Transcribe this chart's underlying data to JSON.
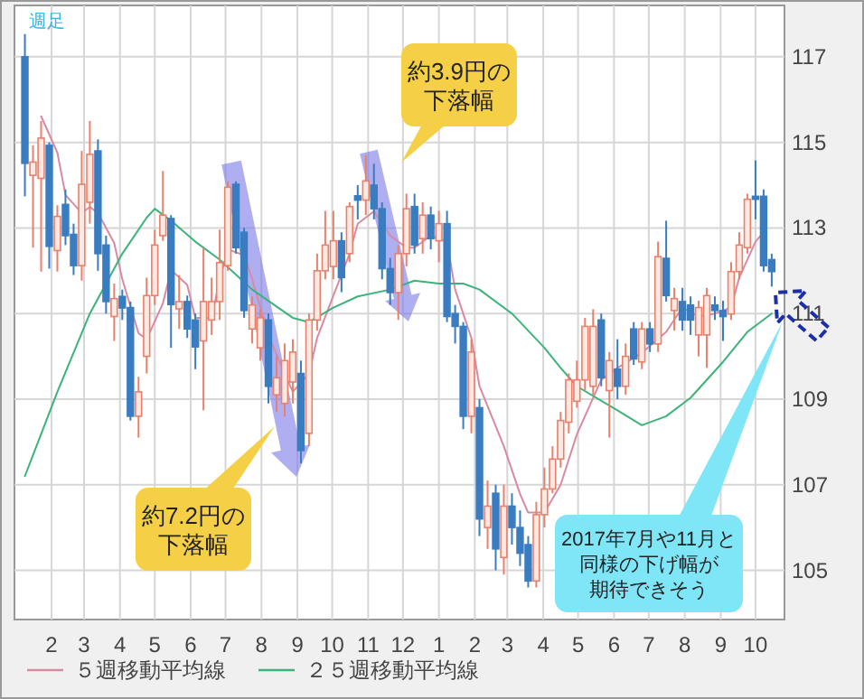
{
  "chart_data": {
    "type": "candlestick",
    "annotations": [
      "週足",
      "約7.2円の下落幅",
      "約3.9円の下落幅",
      "2017年7月や11月と同様の下げ幅が期待できそう"
    ],
    "x": [
      "2017-01-09",
      "2017-01-16",
      "2017-01-23",
      "2017-01-30",
      "2017-02-06",
      "2017-02-13",
      "2017-02-20",
      "2017-02-27",
      "2017-03-06",
      "2017-03-13",
      "2017-03-20",
      "2017-03-27",
      "2017-04-03",
      "2017-04-10",
      "2017-04-17",
      "2017-04-24",
      "2017-05-01",
      "2017-05-08",
      "2017-05-15",
      "2017-05-22",
      "2017-05-29",
      "2017-06-05",
      "2017-06-12",
      "2017-06-19",
      "2017-06-26",
      "2017-07-03",
      "2017-07-10",
      "2017-07-17",
      "2017-07-24",
      "2017-07-31",
      "2017-08-07",
      "2017-08-14",
      "2017-08-21",
      "2017-08-28",
      "2017-09-04",
      "2017-09-11",
      "2017-09-18",
      "2017-09-25",
      "2017-10-02",
      "2017-10-09",
      "2017-10-16",
      "2017-10-23",
      "2017-10-30",
      "2017-11-06",
      "2017-11-13",
      "2017-11-20",
      "2017-11-27",
      "2017-12-04",
      "2017-12-11",
      "2017-12-18",
      "2017-12-25",
      "2018-01-01",
      "2018-01-08",
      "2018-01-15",
      "2018-01-22",
      "2018-01-29",
      "2018-02-05",
      "2018-02-12",
      "2018-02-19",
      "2018-02-26",
      "2018-03-05",
      "2018-03-12",
      "2018-03-19",
      "2018-03-26",
      "2018-04-02",
      "2018-04-09",
      "2018-04-16",
      "2018-04-23",
      "2018-04-30",
      "2018-05-07",
      "2018-05-14",
      "2018-05-21",
      "2018-05-28",
      "2018-06-04",
      "2018-06-11",
      "2018-06-18",
      "2018-06-25",
      "2018-07-02",
      "2018-07-09",
      "2018-07-16",
      "2018-07-23",
      "2018-07-30",
      "2018-08-06",
      "2018-08-13",
      "2018-08-20",
      "2018-08-27",
      "2018-09-03",
      "2018-09-10",
      "2018-09-17",
      "2018-09-24",
      "2018-10-01",
      "2018-10-08",
      "2018-10-15"
    ],
    "ohlc": [
      [
        117.0,
        117.53,
        113.74,
        114.51
      ],
      [
        114.23,
        114.93,
        112.54,
        114.54
      ],
      [
        114.16,
        115.5,
        111.98,
        115.1
      ],
      [
        114.93,
        115.0,
        112.05,
        112.57
      ],
      [
        112.47,
        113.53,
        111.98,
        113.27
      ],
      [
        113.55,
        113.9,
        112.6,
        112.82
      ],
      [
        112.85,
        113.1,
        111.9,
        112.12
      ],
      [
        112.12,
        114.8,
        111.77,
        114.02
      ],
      [
        113.6,
        115.5,
        113.1,
        114.72
      ],
      [
        114.8,
        115.07,
        112.0,
        112.4
      ],
      [
        112.6,
        112.82,
        111.0,
        111.28
      ],
      [
        110.93,
        111.7,
        110.36,
        111.35
      ],
      [
        111.4,
        111.56,
        110.85,
        111.13
      ],
      [
        111.14,
        111.28,
        108.5,
        108.6
      ],
      [
        108.6,
        109.52,
        108.1,
        109.17
      ],
      [
        110.0,
        111.84,
        109.6,
        111.42
      ],
      [
        111.42,
        112.96,
        111.2,
        112.6
      ],
      [
        112.82,
        114.33,
        112.7,
        113.3
      ],
      [
        113.22,
        113.3,
        110.2,
        111.21
      ],
      [
        111.11,
        111.9,
        110.64,
        111.28
      ],
      [
        111.28,
        111.42,
        110.43,
        110.64
      ],
      [
        110.85,
        111.0,
        109.7,
        110.22
      ],
      [
        110.36,
        112.54,
        108.74,
        111.28
      ],
      [
        110.85,
        111.84,
        110.5,
        111.28
      ],
      [
        111.28,
        112.96,
        110.85,
        112.19
      ],
      [
        112.12,
        114.09,
        112.0,
        113.95
      ],
      [
        114.02,
        114.09,
        112.4,
        112.54
      ],
      [
        112.9,
        113.0,
        110.9,
        111.07
      ],
      [
        110.64,
        111.4,
        110.3,
        111.2
      ],
      [
        110.2,
        111.1,
        109.9,
        110.9
      ],
      [
        110.85,
        111.0,
        108.9,
        109.3
      ],
      [
        109.1,
        110.0,
        108.7,
        109.5
      ],
      [
        108.9,
        110.3,
        108.6,
        109.9
      ],
      [
        109.4,
        110.4,
        108.9,
        110.1
      ],
      [
        109.6,
        109.9,
        107.5,
        107.8
      ],
      [
        108.2,
        111.0,
        107.9,
        110.85
      ],
      [
        110.85,
        112.4,
        110.6,
        112.0
      ],
      [
        112.0,
        113.4,
        111.8,
        112.6
      ],
      [
        112.1,
        113.4,
        111.8,
        112.7
      ],
      [
        112.7,
        112.9,
        111.5,
        111.84
      ],
      [
        112.4,
        113.6,
        112.2,
        113.5
      ],
      [
        113.75,
        114.0,
        113.2,
        113.65
      ],
      [
        113.65,
        114.7,
        113.3,
        114.1
      ],
      [
        114.0,
        114.5,
        113.2,
        113.45
      ],
      [
        113.45,
        113.6,
        111.8,
        112.05
      ],
      [
        112.05,
        112.3,
        111.2,
        111.49
      ],
      [
        111.49,
        112.6,
        110.85,
        112.4
      ],
      [
        112.4,
        113.8,
        112.1,
        113.45
      ],
      [
        113.5,
        113.8,
        112.4,
        112.6
      ],
      [
        112.75,
        113.6,
        112.4,
        113.3
      ],
      [
        113.3,
        113.5,
        112.5,
        112.75
      ],
      [
        112.7,
        113.4,
        112.2,
        113.1
      ],
      [
        113.1,
        113.4,
        110.8,
        110.93
      ],
      [
        111.0,
        111.2,
        110.3,
        110.7
      ],
      [
        110.7,
        110.8,
        108.3,
        108.6
      ],
      [
        108.6,
        110.4,
        108.2,
        110.1
      ],
      [
        108.8,
        109.0,
        105.8,
        106.2
      ],
      [
        106.0,
        107.1,
        105.5,
        106.5
      ],
      [
        106.8,
        107.0,
        105.0,
        105.5
      ],
      [
        105.3,
        107.0,
        104.9,
        106.5
      ],
      [
        106.5,
        106.8,
        105.6,
        106.0
      ],
      [
        106.0,
        106.4,
        105.1,
        105.4
      ],
      [
        105.6,
        105.8,
        104.6,
        104.75
      ],
      [
        104.75,
        106.6,
        104.6,
        106.3
      ],
      [
        106.3,
        107.4,
        106.0,
        106.9
      ],
      [
        106.9,
        107.9,
        106.8,
        107.6
      ],
      [
        107.6,
        108.7,
        107.4,
        108.5
      ],
      [
        108.46,
        109.6,
        108.2,
        109.45
      ],
      [
        108.95,
        109.9,
        108.8,
        109.45
      ],
      [
        109.45,
        110.9,
        109.2,
        110.7
      ],
      [
        109.3,
        111.1,
        109.1,
        110.7
      ],
      [
        110.85,
        111.0,
        109.3,
        109.5
      ],
      [
        109.2,
        110.1,
        108.1,
        109.9
      ],
      [
        109.7,
        110.4,
        109.0,
        109.3
      ],
      [
        109.3,
        110.3,
        109.1,
        110.0
      ],
      [
        110.64,
        110.8,
        109.8,
        109.94
      ],
      [
        109.87,
        110.8,
        109.7,
        110.64
      ],
      [
        110.64,
        110.8,
        110.1,
        110.29
      ],
      [
        110.29,
        112.68,
        110.1,
        112.33
      ],
      [
        112.29,
        113.17,
        111.28,
        111.42
      ],
      [
        111.07,
        111.6,
        110.6,
        111.35
      ],
      [
        111.28,
        111.6,
        110.6,
        110.85
      ],
      [
        111.2,
        111.4,
        110.5,
        110.85
      ],
      [
        110.5,
        111.3,
        110.0,
        111.14
      ],
      [
        110.5,
        111.6,
        109.73,
        111.42
      ],
      [
        111.2,
        111.4,
        110.85,
        111.07
      ],
      [
        111.07,
        111.3,
        110.36,
        110.93
      ],
      [
        110.99,
        112.2,
        110.85,
        111.98
      ],
      [
        111.98,
        112.9,
        111.8,
        112.6
      ],
      [
        112.54,
        113.8,
        112.4,
        113.67
      ],
      [
        113.74,
        114.58,
        113.2,
        113.67
      ],
      [
        113.74,
        113.9,
        111.98,
        112.12
      ],
      [
        112.26,
        112.4,
        111.63,
        111.98
      ]
    ],
    "colors": [
      "#3a7cc0",
      "#e8806c",
      "#e8806c",
      "#3a7cc0",
      "#e8806c",
      "#3a7cc0",
      "#3a7cc0",
      "#e8806c",
      "#e8806c",
      "#3a7cc0",
      "#3a7cc0",
      "#e8806c",
      "#3a7cc0",
      "#3a7cc0",
      "#e8806c",
      "#e8806c",
      "#e8806c",
      "#e8806c",
      "#3a7cc0",
      "#e8806c",
      "#3a7cc0",
      "#3a7cc0",
      "#e8806c",
      "#e8806c",
      "#e8806c",
      "#e8806c",
      "#3a7cc0",
      "#3a7cc0",
      "#e8806c",
      "#e8806c",
      "#3a7cc0",
      "#e8806c",
      "#e8806c",
      "#e8806c",
      "#3a7cc0",
      "#e8806c",
      "#e8806c",
      "#e8806c",
      "#e8806c",
      "#3a7cc0",
      "#e8806c",
      "#3a7cc0",
      "#e8806c",
      "#3a7cc0",
      "#3a7cc0",
      "#3a7cc0",
      "#e8806c",
      "#e8806c",
      "#3a7cc0",
      "#e8806c",
      "#3a7cc0",
      "#e8806c",
      "#3a7cc0",
      "#3a7cc0",
      "#3a7cc0",
      "#e8806c",
      "#3a7cc0",
      "#e8806c",
      "#3a7cc0",
      "#e8806c",
      "#3a7cc0",
      "#3a7cc0",
      "#3a7cc0",
      "#e8806c",
      "#e8806c",
      "#e8806c",
      "#e8806c",
      "#e8806c",
      "#e8806c",
      "#e8806c",
      "#e8806c",
      "#3a7cc0",
      "#e8806c",
      "#3a7cc0",
      "#e8806c",
      "#3a7cc0",
      "#e8806c",
      "#3a7cc0",
      "#e8806c",
      "#3a7cc0",
      "#e8806c",
      "#3a7cc0",
      "#3a7cc0",
      "#e8806c",
      "#e8806c",
      "#3a7cc0",
      "#3a7cc0",
      "#e8806c",
      "#e8806c",
      "#e8806c",
      "#3a7cc0",
      "#3a7cc0",
      "#3a7cc0"
    ],
    "series": [
      {
        "name": "５週移動平均線",
        "type": "line",
        "color": "#d98aa0",
        "x": [
          "2017-01-23",
          "2017-02-06",
          "2017-02-13",
          "2017-02-27",
          "2017-03-06",
          "2017-03-13",
          "2017-03-27",
          "2017-04-03",
          "2017-04-17",
          "2017-04-24",
          "2017-05-08",
          "2017-05-15",
          "2017-05-29",
          "2017-06-05",
          "2017-06-19",
          "2017-06-26",
          "2017-07-03",
          "2017-07-17",
          "2017-07-24",
          "2017-08-07",
          "2017-08-21",
          "2017-08-28",
          "2017-09-11",
          "2017-09-18",
          "2017-10-02",
          "2017-10-16",
          "2017-10-23",
          "2017-11-06",
          "2017-11-20",
          "2017-12-04",
          "2017-12-11",
          "2017-12-25",
          "2018-01-08",
          "2018-01-15",
          "2018-01-29",
          "2018-02-05",
          "2018-02-26",
          "2018-03-12",
          "2018-03-19",
          "2018-04-02",
          "2018-04-16",
          "2018-04-30",
          "2018-05-14",
          "2018-05-21",
          "2018-06-04",
          "2018-06-25",
          "2018-07-16",
          "2018-07-30",
          "2018-08-13",
          "2018-08-27",
          "2018-09-10",
          "2018-09-17",
          "2018-10-01",
          "2018-10-08"
        ],
        "values": [
          115.61,
          114.76,
          113.77,
          113.35,
          113.49,
          113.35,
          112.65,
          111.8,
          110.54,
          110.4,
          111.24,
          112.02,
          111.67,
          110.9,
          110.9,
          111.8,
          112.5,
          112.36,
          111.8,
          110.5,
          109.6,
          109.17,
          109.6,
          110.43,
          111.42,
          112.4,
          113.1,
          113.39,
          112.82,
          112.54,
          112.54,
          112.82,
          112.68,
          111.56,
          110.43,
          109.3,
          107.9,
          106.78,
          106.35,
          106.35,
          107.0,
          108.18,
          109.03,
          109.45,
          109.73,
          110.08,
          110.57,
          111.14,
          110.93,
          111.0,
          111.14,
          111.84,
          112.68,
          112.9
        ]
      },
      {
        "name": "２５週移動平均線",
        "type": "line",
        "color": "#3cb37a",
        "x": [
          "2017-01-09",
          "2017-02-06",
          "2017-03-06",
          "2017-04-03",
          "2017-04-24",
          "2017-05-01",
          "2017-05-15",
          "2017-06-05",
          "2017-06-26",
          "2017-07-24",
          "2017-08-28",
          "2017-09-11",
          "2017-10-02",
          "2017-10-23",
          "2017-11-20",
          "2017-12-11",
          "2018-01-01",
          "2018-01-22",
          "2018-02-05",
          "2018-03-05",
          "2018-04-02",
          "2018-04-16",
          "2018-04-30",
          "2018-06-04",
          "2018-06-25",
          "2018-07-16",
          "2018-08-06",
          "2018-09-03",
          "2018-09-24",
          "2018-10-15"
        ],
        "values": [
          107.2,
          109.17,
          111.0,
          112.4,
          113.24,
          113.45,
          113.17,
          112.68,
          112.26,
          111.56,
          110.9,
          110.8,
          111.14,
          111.4,
          111.56,
          111.77,
          111.7,
          111.7,
          111.56,
          111.0,
          110.2,
          109.73,
          109.3,
          108.74,
          108.39,
          108.6,
          109.03,
          109.87,
          110.57,
          111.0
        ]
      }
    ],
    "xlim": [
      "2016-12-31",
      "2018-10-26"
    ],
    "xticks": [
      {
        "value": "2017-02-01",
        "label": "2"
      },
      {
        "value": "2017-03-01",
        "label": "3"
      },
      {
        "value": "2017-04-01",
        "label": "4"
      },
      {
        "value": "2017-05-01",
        "label": "5"
      },
      {
        "value": "2017-06-01",
        "label": "6"
      },
      {
        "value": "2017-07-01",
        "label": "7"
      },
      {
        "value": "2017-08-01",
        "label": "8"
      },
      {
        "value": "2017-09-01",
        "label": "9"
      },
      {
        "value": "2017-10-01",
        "label": "10"
      },
      {
        "value": "2017-11-01",
        "label": "11"
      },
      {
        "value": "2017-12-01",
        "label": "12"
      },
      {
        "value": "2018-01-01",
        "label": "1"
      },
      {
        "value": "2018-02-01",
        "label": "2"
      },
      {
        "value": "2018-03-01",
        "label": "3"
      },
      {
        "value": "2018-04-01",
        "label": "4"
      },
      {
        "value": "2018-05-01",
        "label": "5"
      },
      {
        "value": "2018-06-01",
        "label": "6"
      },
      {
        "value": "2018-07-01",
        "label": "7"
      },
      {
        "value": "2018-08-01",
        "label": "8"
      },
      {
        "value": "2018-09-01",
        "label": "9"
      },
      {
        "value": "2018-10-01",
        "label": "10"
      }
    ],
    "ylim": [
      103.85,
      118.2
    ],
    "yticks": [
      105,
      107,
      109,
      111,
      113,
      115,
      117
    ],
    "grid": true,
    "legend": "bottom"
  }
}
